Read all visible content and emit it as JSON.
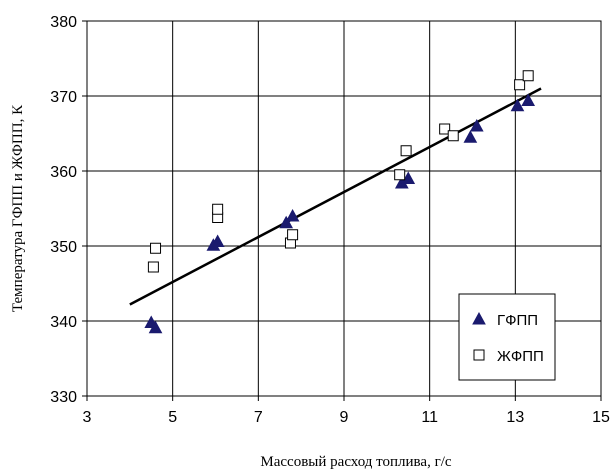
{
  "chart_data": {
    "type": "scatter",
    "title": "",
    "xlabel": "Массовый расход топлива, г/с",
    "ylabel": "Температура ГФПП и ЖФПП, К",
    "xlim": [
      3,
      15
    ],
    "ylim": [
      330,
      380
    ],
    "x_ticks": [
      "3",
      "5",
      "7",
      "9",
      "11",
      "13",
      "15"
    ],
    "y_ticks": [
      "330",
      "340",
      "350",
      "360",
      "370",
      "380"
    ],
    "grid": true,
    "legend_position": "bottom-right",
    "series": [
      {
        "name": "ГФПП",
        "marker": "filled-triangle",
        "color": "#1a1a6e",
        "points": [
          {
            "x": 4.5,
            "y": 339.8
          },
          {
            "x": 4.6,
            "y": 339.1
          },
          {
            "x": 5.95,
            "y": 350.1
          },
          {
            "x": 6.05,
            "y": 350.6
          },
          {
            "x": 7.65,
            "y": 353.1
          },
          {
            "x": 7.8,
            "y": 354.0
          },
          {
            "x": 10.35,
            "y": 358.4
          },
          {
            "x": 10.5,
            "y": 359.0
          },
          {
            "x": 11.95,
            "y": 364.5
          },
          {
            "x": 12.1,
            "y": 366.0
          },
          {
            "x": 13.05,
            "y": 368.7
          },
          {
            "x": 13.3,
            "y": 369.4
          }
        ]
      },
      {
        "name": "ЖФПП",
        "marker": "open-square",
        "color": "#000000",
        "points": [
          {
            "x": 4.55,
            "y": 347.2
          },
          {
            "x": 4.6,
            "y": 349.7
          },
          {
            "x": 6.05,
            "y": 353.8
          },
          {
            "x": 6.05,
            "y": 354.9
          },
          {
            "x": 7.75,
            "y": 350.4
          },
          {
            "x": 7.8,
            "y": 351.5
          },
          {
            "x": 10.3,
            "y": 359.5
          },
          {
            "x": 10.45,
            "y": 362.7
          },
          {
            "x": 11.35,
            "y": 365.6
          },
          {
            "x": 11.55,
            "y": 364.7
          },
          {
            "x": 13.1,
            "y": 371.5
          },
          {
            "x": 13.3,
            "y": 372.7
          }
        ]
      }
    ],
    "trendline": {
      "x": [
        4.0,
        13.6
      ],
      "y": [
        342.2,
        371.0
      ],
      "color": "#000000"
    }
  }
}
